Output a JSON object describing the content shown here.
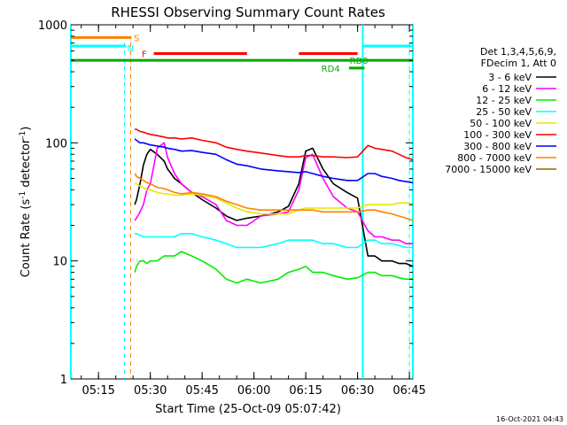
{
  "chart_data": {
    "type": "line",
    "title": "RHESSI Observing Summary Count Rates",
    "xlabel": "Start Time (25-Oct-09 05:07:42)",
    "ylabel_parts": [
      "Count Rate (s",
      "-1",
      " detector",
      "-1",
      ")"
    ],
    "yscale": "log",
    "ylim": [
      1,
      1000
    ],
    "xlim_minutes_after_0507": [
      0,
      99
    ],
    "y_ticks": [
      {
        "value": 1,
        "label": "1"
      },
      {
        "value": 10,
        "label": "10"
      },
      {
        "value": 100,
        "label": "100"
      },
      {
        "value": 1000,
        "label": "1000"
      }
    ],
    "x_ticks": [
      {
        "minute": 8,
        "label": "05:15"
      },
      {
        "minute": 23,
        "label": "05:30"
      },
      {
        "minute": 38,
        "label": "05:45"
      },
      {
        "minute": 53,
        "label": "06:00"
      },
      {
        "minute": 68,
        "label": "06:15"
      },
      {
        "minute": 83,
        "label": "06:30"
      },
      {
        "minute": 98,
        "label": "06:45"
      }
    ],
    "legend_header": [
      "Det 1,3,4,5,6,9,",
      "FDecim 1, Att 0"
    ],
    "series": [
      {
        "name": "3 - 6 keV",
        "color": "#000000",
        "x": [
          18.5,
          19,
          20,
          21,
          22,
          23,
          25,
          27,
          28,
          30,
          32,
          35,
          38,
          42,
          45,
          48,
          51,
          55,
          60,
          63,
          66,
          68,
          70,
          73,
          76,
          80,
          83,
          86,
          88,
          90,
          93,
          95,
          97,
          99
        ],
        "y": [
          30,
          33,
          45,
          65,
          80,
          88,
          80,
          70,
          60,
          50,
          45,
          38,
          33,
          28,
          24,
          22,
          23,
          24,
          26,
          29,
          45,
          85,
          90,
          60,
          45,
          38,
          34,
          11,
          11,
          10,
          10,
          9.5,
          9.5,
          9
        ]
      },
      {
        "name": "6 - 12 keV",
        "color": "#ff00ff",
        "x": [
          18.5,
          19,
          20,
          21,
          22,
          23,
          25,
          27,
          28,
          30,
          32,
          35,
          38,
          42,
          45,
          48,
          51,
          55,
          60,
          63,
          66,
          68,
          70,
          73,
          76,
          80,
          83,
          86,
          88,
          90,
          93,
          95,
          97,
          99
        ],
        "y": [
          22,
          23,
          26,
          30,
          40,
          45,
          90,
          100,
          75,
          55,
          45,
          38,
          35,
          30,
          22,
          20,
          20,
          24,
          25,
          26,
          40,
          75,
          80,
          50,
          35,
          28,
          26,
          18,
          16,
          16,
          15,
          15,
          14,
          14
        ]
      },
      {
        "name": "12 - 25 keV",
        "color": "#00ee00",
        "x": [
          18.5,
          19,
          20,
          21,
          22,
          23,
          25,
          27,
          28,
          30,
          32,
          35,
          38,
          42,
          45,
          48,
          51,
          55,
          60,
          63,
          66,
          68,
          70,
          73,
          76,
          80,
          83,
          86,
          88,
          90,
          93,
          95,
          97,
          99
        ],
        "y": [
          8,
          9,
          10,
          10,
          9.5,
          10,
          10,
          11,
          11,
          11,
          12,
          11,
          10,
          8.5,
          7,
          6.5,
          7,
          6.5,
          7,
          8,
          8.5,
          9,
          8,
          8,
          7.5,
          7,
          7.2,
          8,
          8,
          7.5,
          7.5,
          7.2,
          7,
          7
        ]
      },
      {
        "name": "25 - 50 keV",
        "color": "#00ffff",
        "x": [
          18.5,
          19,
          20,
          21,
          22,
          23,
          25,
          27,
          28,
          30,
          32,
          35,
          38,
          42,
          45,
          48,
          51,
          55,
          60,
          63,
          66,
          68,
          70,
          73,
          76,
          80,
          83,
          86,
          88,
          90,
          93,
          95,
          97,
          99
        ],
        "y": [
          17,
          17,
          16.5,
          16,
          16,
          16,
          16,
          16,
          16,
          16,
          17,
          17,
          16,
          15,
          14,
          13,
          13,
          13,
          14,
          15,
          15,
          15,
          15,
          14,
          14,
          13,
          13,
          15,
          15,
          14,
          14,
          13.5,
          13,
          13
        ]
      },
      {
        "name": "50 - 100 keV",
        "color": "#e6e600",
        "x": [
          18.5,
          19,
          20,
          21,
          22,
          23,
          25,
          27,
          28,
          30,
          32,
          35,
          38,
          42,
          45,
          48,
          51,
          55,
          60,
          63,
          66,
          68,
          70,
          73,
          76,
          80,
          83,
          86,
          88,
          90,
          93,
          95,
          97,
          99
        ],
        "y": [
          45,
          45,
          43,
          42,
          40,
          40,
          38,
          37,
          37,
          36,
          36,
          37,
          36,
          34,
          31,
          28,
          26,
          25,
          25,
          25,
          27,
          28,
          28,
          28,
          28,
          28,
          28,
          30,
          30,
          30,
          30,
          31,
          31,
          30
        ]
      },
      {
        "name": "100 - 300 keV",
        "color": "#ff0000",
        "x": [
          18.5,
          19,
          20,
          21,
          22,
          23,
          25,
          27,
          28,
          30,
          32,
          35,
          38,
          42,
          45,
          48,
          51,
          55,
          60,
          63,
          66,
          68,
          70,
          73,
          76,
          80,
          83,
          86,
          88,
          90,
          93,
          95,
          97,
          99
        ],
        "y": [
          130,
          130,
          125,
          123,
          120,
          118,
          115,
          112,
          110,
          110,
          108,
          110,
          105,
          100,
          92,
          88,
          85,
          82,
          78,
          76,
          76,
          78,
          78,
          76,
          76,
          75,
          76,
          95,
          90,
          88,
          85,
          80,
          75,
          72
        ]
      },
      {
        "name": "300 - 800 keV",
        "color": "#0000ff",
        "x": [
          18.5,
          19,
          20,
          21,
          22,
          23,
          25,
          27,
          28,
          30,
          32,
          35,
          38,
          42,
          45,
          48,
          51,
          55,
          60,
          63,
          66,
          68,
          70,
          73,
          76,
          80,
          83,
          86,
          88,
          90,
          93,
          95,
          97,
          99
        ],
        "y": [
          108,
          105,
          100,
          100,
          98,
          96,
          94,
          92,
          90,
          88,
          85,
          86,
          83,
          80,
          72,
          66,
          64,
          60,
          58,
          57,
          56,
          57,
          55,
          52,
          50,
          48,
          48,
          55,
          55,
          52,
          50,
          48,
          47,
          46
        ]
      },
      {
        "name": "800 - 7000 keV",
        "color": "#ff8000",
        "x": [
          18.5,
          19,
          20,
          21,
          22,
          23,
          25,
          27,
          28,
          30,
          32,
          35,
          38,
          42,
          45,
          48,
          51,
          55,
          60,
          63,
          66,
          68,
          70,
          73,
          76,
          80,
          83,
          86,
          88,
          90,
          93,
          95,
          97,
          99
        ],
        "y": [
          55,
          52,
          50,
          48,
          46,
          45,
          42,
          41,
          40,
          38,
          37,
          38,
          37,
          35,
          32,
          30,
          28,
          27,
          27,
          27,
          27,
          27,
          27,
          26,
          26,
          26,
          26,
          27,
          27,
          26,
          25,
          24,
          23,
          22
        ]
      },
      {
        "name": "7000 - 15000 keV",
        "color": "#996600",
        "x": [],
        "y": []
      }
    ],
    "attenuator_vlines_minute": [
      0,
      84.5,
      99
    ],
    "s_vlines_minute": [
      15.5,
      17.3
    ],
    "flag_bars": [
      {
        "label": "S",
        "color": "#ff8000",
        "y": 780,
        "segments": [
          [
            0,
            17.5
          ]
        ]
      },
      {
        "label": "N",
        "color": "#00ffff",
        "y": 660,
        "segments": [
          [
            0,
            16
          ],
          [
            84.5,
            99
          ]
        ]
      },
      {
        "label": "F",
        "color": "#ff0000",
        "y": 570,
        "segments": [
          [
            24,
            51
          ],
          [
            66,
            83
          ]
        ]
      },
      {
        "label": "RD0",
        "color": "#00aa00",
        "y": 500,
        "segments": [
          [
            0,
            99
          ]
        ]
      },
      {
        "label": "RD4",
        "color": "#00aa00",
        "y": 430,
        "segments": [
          [
            80.5,
            85
          ]
        ]
      }
    ],
    "grid": false,
    "legend_position": "right"
  },
  "footer": {
    "timestamp": "16-Oct-2021 04:43"
  }
}
